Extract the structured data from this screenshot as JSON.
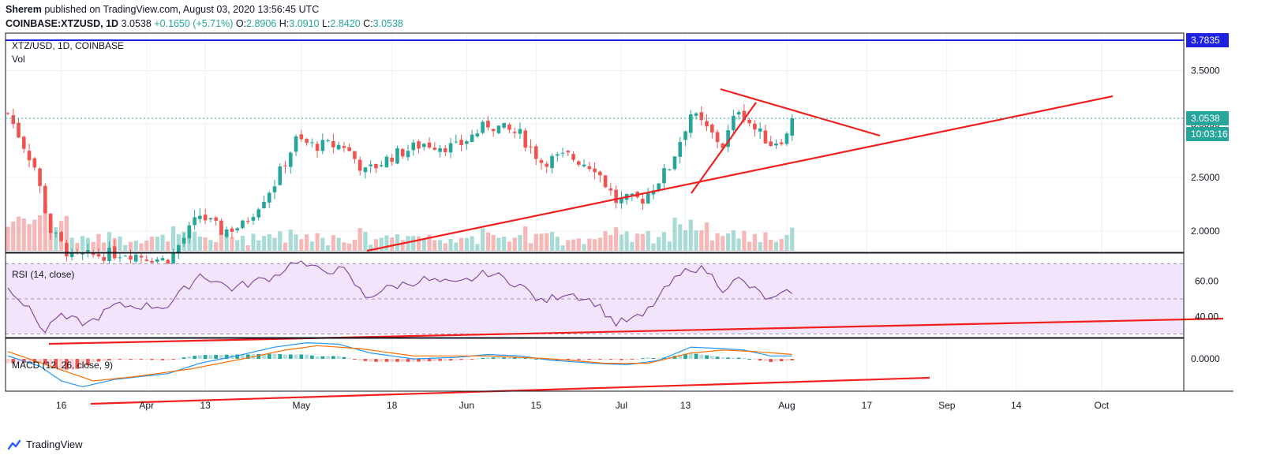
{
  "header": {
    "author": "Sherem",
    "published_text": "published on TradingView.com, August 03, 2020 13:56:45 UTC",
    "symbol": "COINBASE:XTZUSD, 1D",
    "last": "3.0538",
    "change": "+0.1650 (+5.71%)",
    "o_label": "O:",
    "o": "2.8906",
    "h_label": "H:",
    "h": "3.0910",
    "l_label": "L:",
    "l": "2.8420",
    "c_label": "C:",
    "c": "3.0538"
  },
  "branding": {
    "logo_text": "TradingView"
  },
  "colors": {
    "up": "#26a69a",
    "down": "#ef5350",
    "trendline": "#f21f1f",
    "resistance": "#1f22e0",
    "rsi_line": "#7e3f98",
    "rsi_band": "#f2e4fb",
    "macd": "#2196f3",
    "signal": "#ff6d00",
    "grid": "#eef0f3"
  },
  "chart_data": [
    {
      "type": "candlestick",
      "title": "XTZ/USD, 1D, COINBASE",
      "volume_label": "Vol",
      "x_ticks": [
        "16",
        "Apr",
        "13",
        "May",
        "18",
        "Jun",
        "15",
        "Jul",
        "13",
        "Aug",
        "17",
        "Sep",
        "14",
        "Oct"
      ],
      "y_ticks": [
        "3.5000",
        "3.0000",
        "2.5000",
        "2.0000"
      ],
      "ylim": [
        1.8,
        3.85
      ],
      "price_label": "3.0538",
      "countdown_label": "10:03:16",
      "resistance_label": "3.7835",
      "resistance_value": 3.7835,
      "candle_count": 148,
      "key_points": [
        {
          "day": 0,
          "close": 3.1
        },
        {
          "day": 5,
          "close": 2.6
        },
        {
          "day": 8,
          "close": 2.0
        },
        {
          "day": 12,
          "close": 1.75
        },
        {
          "day": 22,
          "close": 1.8
        },
        {
          "day": 30,
          "close": 1.72
        },
        {
          "day": 36,
          "close": 2.15
        },
        {
          "day": 40,
          "close": 2.0
        },
        {
          "day": 44,
          "close": 2.05
        },
        {
          "day": 50,
          "close": 2.45
        },
        {
          "day": 54,
          "close": 2.85
        },
        {
          "day": 57,
          "close": 2.8
        },
        {
          "day": 63,
          "close": 2.8
        },
        {
          "day": 67,
          "close": 2.55
        },
        {
          "day": 72,
          "close": 2.7
        },
        {
          "day": 78,
          "close": 2.82
        },
        {
          "day": 84,
          "close": 2.78
        },
        {
          "day": 90,
          "close": 3.0
        },
        {
          "day": 96,
          "close": 2.9
        },
        {
          "day": 100,
          "close": 2.65
        },
        {
          "day": 105,
          "close": 2.7
        },
        {
          "day": 110,
          "close": 2.6
        },
        {
          "day": 114,
          "close": 2.28
        },
        {
          "day": 119,
          "close": 2.3
        },
        {
          "day": 124,
          "close": 2.6
        },
        {
          "day": 128,
          "close": 3.1
        },
        {
          "day": 131,
          "close": 2.95
        },
        {
          "day": 134,
          "close": 2.8
        },
        {
          "day": 137,
          "close": 3.15
        },
        {
          "day": 140,
          "close": 2.95
        },
        {
          "day": 143,
          "close": 2.82
        },
        {
          "day": 146,
          "close": 2.89
        },
        {
          "day": 147,
          "close": 3.0538
        }
      ]
    },
    {
      "type": "line",
      "title": "RSI (14, close)",
      "y_ticks": [
        "60.00",
        "40.00"
      ],
      "ylim": [
        28,
        76
      ],
      "band": [
        30,
        70
      ],
      "key_points": [
        {
          "day": 0,
          "value": 58
        },
        {
          "day": 5,
          "value": 40
        },
        {
          "day": 7,
          "value": 31
        },
        {
          "day": 9,
          "value": 40
        },
        {
          "day": 15,
          "value": 36
        },
        {
          "day": 20,
          "value": 46
        },
        {
          "day": 30,
          "value": 46
        },
        {
          "day": 36,
          "value": 64
        },
        {
          "day": 42,
          "value": 56
        },
        {
          "day": 50,
          "value": 63
        },
        {
          "day": 54,
          "value": 72
        },
        {
          "day": 57,
          "value": 67
        },
        {
          "day": 63,
          "value": 66
        },
        {
          "day": 67,
          "value": 51
        },
        {
          "day": 72,
          "value": 57
        },
        {
          "day": 78,
          "value": 61
        },
        {
          "day": 84,
          "value": 58
        },
        {
          "day": 90,
          "value": 65
        },
        {
          "day": 96,
          "value": 58
        },
        {
          "day": 100,
          "value": 48
        },
        {
          "day": 105,
          "value": 54
        },
        {
          "day": 110,
          "value": 48
        },
        {
          "day": 114,
          "value": 36
        },
        {
          "day": 119,
          "value": 40
        },
        {
          "day": 124,
          "value": 58
        },
        {
          "day": 128,
          "value": 68
        },
        {
          "day": 131,
          "value": 66
        },
        {
          "day": 134,
          "value": 56
        },
        {
          "day": 137,
          "value": 61
        },
        {
          "day": 140,
          "value": 55
        },
        {
          "day": 143,
          "value": 49
        },
        {
          "day": 146,
          "value": 53
        },
        {
          "day": 147,
          "value": 55
        }
      ]
    },
    {
      "type": "line",
      "title": "MACD (12, 26, close, 9)",
      "y_ticks": [
        "0.0000"
      ],
      "ylim": [
        -0.22,
        0.14
      ],
      "series": [
        {
          "name": "MACD",
          "key_points": [
            {
              "day": 0,
              "value": 0.02
            },
            {
              "day": 6,
              "value": -0.05
            },
            {
              "day": 10,
              "value": -0.15
            },
            {
              "day": 14,
              "value": -0.19
            },
            {
              "day": 20,
              "value": -0.14
            },
            {
              "day": 30,
              "value": -0.1
            },
            {
              "day": 36,
              "value": -0.03
            },
            {
              "day": 44,
              "value": 0.03
            },
            {
              "day": 50,
              "value": 0.08
            },
            {
              "day": 56,
              "value": 0.11
            },
            {
              "day": 62,
              "value": 0.1
            },
            {
              "day": 68,
              "value": 0.04
            },
            {
              "day": 76,
              "value": 0.0
            },
            {
              "day": 84,
              "value": 0.01
            },
            {
              "day": 90,
              "value": 0.03
            },
            {
              "day": 96,
              "value": 0.02
            },
            {
              "day": 102,
              "value": -0.01
            },
            {
              "day": 110,
              "value": -0.03
            },
            {
              "day": 116,
              "value": -0.04
            },
            {
              "day": 122,
              "value": -0.01
            },
            {
              "day": 128,
              "value": 0.08
            },
            {
              "day": 134,
              "value": 0.07
            },
            {
              "day": 138,
              "value": 0.06
            },
            {
              "day": 143,
              "value": 0.02
            },
            {
              "day": 147,
              "value": 0.02
            }
          ]
        },
        {
          "name": "Signal",
          "key_points": [
            {
              "day": 0,
              "value": 0.05
            },
            {
              "day": 8,
              "value": -0.05
            },
            {
              "day": 16,
              "value": -0.15
            },
            {
              "day": 24,
              "value": -0.12
            },
            {
              "day": 34,
              "value": -0.07
            },
            {
              "day": 44,
              "value": 0.0
            },
            {
              "day": 52,
              "value": 0.06
            },
            {
              "day": 58,
              "value": 0.09
            },
            {
              "day": 66,
              "value": 0.07
            },
            {
              "day": 76,
              "value": 0.02
            },
            {
              "day": 90,
              "value": 0.02
            },
            {
              "day": 102,
              "value": 0.0
            },
            {
              "day": 112,
              "value": -0.03
            },
            {
              "day": 120,
              "value": -0.03
            },
            {
              "day": 128,
              "value": 0.04
            },
            {
              "day": 134,
              "value": 0.06
            },
            {
              "day": 140,
              "value": 0.05
            },
            {
              "day": 147,
              "value": 0.03
            }
          ]
        }
      ]
    }
  ]
}
